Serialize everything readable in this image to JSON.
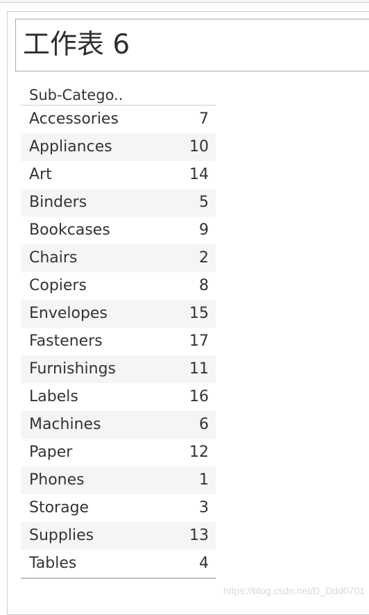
{
  "sheet": {
    "title": "工作表 6"
  },
  "table": {
    "header": "Sub-Catego..",
    "rows": [
      {
        "name": "Accessories",
        "count": "7"
      },
      {
        "name": "Appliances",
        "count": "10"
      },
      {
        "name": "Art",
        "count": "14"
      },
      {
        "name": "Binders",
        "count": "5"
      },
      {
        "name": "Bookcases",
        "count": "9"
      },
      {
        "name": "Chairs",
        "count": "2"
      },
      {
        "name": "Copiers",
        "count": "8"
      },
      {
        "name": "Envelopes",
        "count": "15"
      },
      {
        "name": "Fasteners",
        "count": "17"
      },
      {
        "name": "Furnishings",
        "count": "11"
      },
      {
        "name": "Labels",
        "count": "16"
      },
      {
        "name": "Machines",
        "count": "6"
      },
      {
        "name": "Paper",
        "count": "12"
      },
      {
        "name": "Phones",
        "count": "1"
      },
      {
        "name": "Storage",
        "count": "3"
      },
      {
        "name": "Supplies",
        "count": "13"
      },
      {
        "name": "Tables",
        "count": "4"
      }
    ]
  },
  "watermark": "https://blog.csdn.net/D_Ddd0701",
  "colors": {
    "row_alt": "#f5f5f5",
    "text": "#333333",
    "border": "#cfcfcf"
  }
}
